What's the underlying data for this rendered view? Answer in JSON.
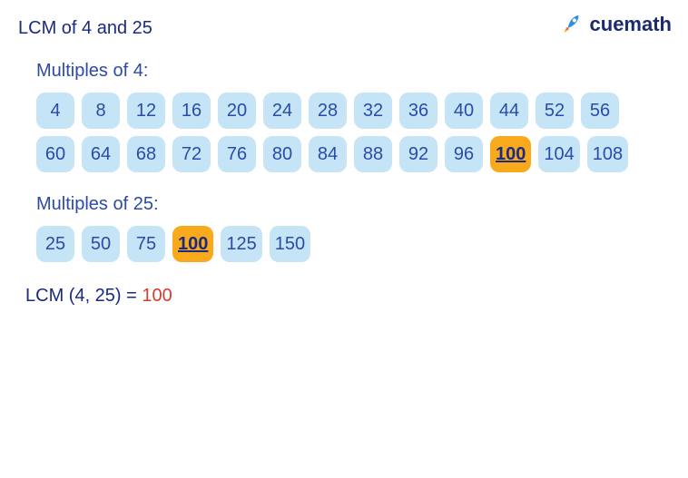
{
  "colors": {
    "title": "#1a2a80",
    "label": "#2c4aa8",
    "chip_bg": "#c5e5f7",
    "chip_text": "#2c4aa8",
    "chip_highlight_bg": "#f8aa1c",
    "chip_highlight_text": "#1a2a80",
    "result_label": "#1a2a80",
    "result_value": "#d43c2e",
    "logo_rocket_body": "#2f8fe0",
    "logo_flame1": "#f8aa1c",
    "logo_flame2": "#e05555"
  },
  "title": "LCM of 4 and 25",
  "section_a": {
    "label": "Multiples of 4:",
    "chips": [
      {
        "v": "4",
        "hl": false
      },
      {
        "v": "8",
        "hl": false
      },
      {
        "v": "12",
        "hl": false
      },
      {
        "v": "16",
        "hl": false
      },
      {
        "v": "20",
        "hl": false
      },
      {
        "v": "24",
        "hl": false
      },
      {
        "v": "28",
        "hl": false
      },
      {
        "v": "32",
        "hl": false
      },
      {
        "v": "36",
        "hl": false
      },
      {
        "v": "40",
        "hl": false
      },
      {
        "v": "44",
        "hl": false
      },
      {
        "v": "52",
        "hl": false
      },
      {
        "v": "56",
        "hl": false
      },
      {
        "v": "60",
        "hl": false
      },
      {
        "v": "64",
        "hl": false
      },
      {
        "v": "68",
        "hl": false
      },
      {
        "v": "72",
        "hl": false
      },
      {
        "v": "76",
        "hl": false
      },
      {
        "v": "80",
        "hl": false
      },
      {
        "v": "84",
        "hl": false
      },
      {
        "v": "88",
        "hl": false
      },
      {
        "v": "92",
        "hl": false
      },
      {
        "v": "96",
        "hl": false
      },
      {
        "v": "100",
        "hl": true
      },
      {
        "v": "104",
        "hl": false
      },
      {
        "v": "108",
        "hl": false
      }
    ]
  },
  "section_b": {
    "label": "Multiples of 25:",
    "chips": [
      {
        "v": "25",
        "hl": false
      },
      {
        "v": "50",
        "hl": false
      },
      {
        "v": "75",
        "hl": false
      },
      {
        "v": "100",
        "hl": true
      },
      {
        "v": "125",
        "hl": false
      },
      {
        "v": "150",
        "hl": false
      }
    ]
  },
  "result": {
    "label": "LCM (4, 25) = ",
    "value": "100"
  },
  "logo": {
    "text": "cuemath"
  }
}
